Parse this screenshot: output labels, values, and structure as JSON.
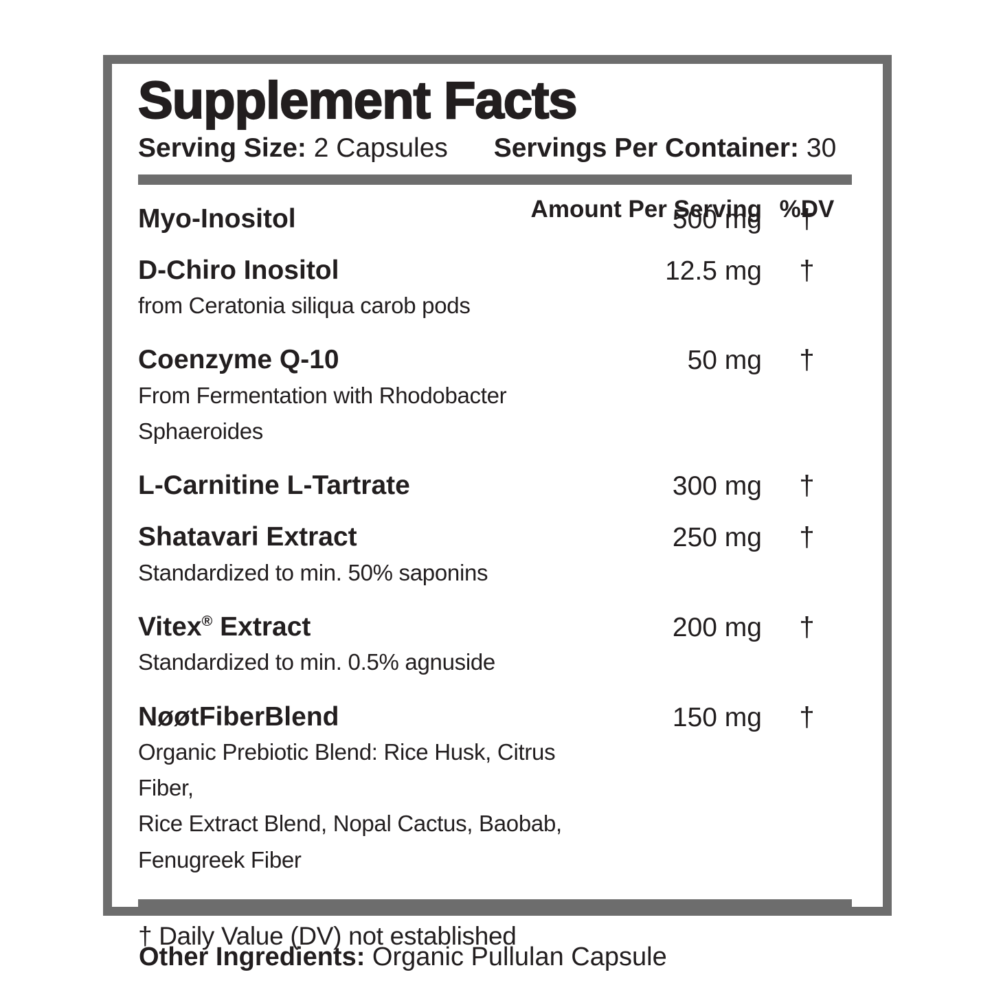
{
  "panel": {
    "title": "Supplement Facts",
    "serving_size_label": "Serving Size:",
    "serving_size_value": "2 Capsules",
    "servings_per_container_label": "Servings Per Container:",
    "servings_per_container_value": "30",
    "columns": {
      "amount": "Amount Per Serving",
      "dv": "%DV"
    },
    "rows": [
      {
        "name": "Myo-Inositol",
        "amount": "500 mg",
        "dv": "†"
      },
      {
        "name": "D-Chiro Inositol",
        "sub": "from Ceratonia siliqua carob pods",
        "amount": "12.5 mg",
        "dv": "†"
      },
      {
        "name": "Coenzyme Q-10",
        "sub": "From Fermentation with Rhodobacter Sphaeroides",
        "amount": "50 mg",
        "dv": "†"
      },
      {
        "name": "L-Carnitine L-Tartrate",
        "amount": "300 mg",
        "dv": "†"
      },
      {
        "name": "Shatavari Extract",
        "sub": "Standardized to min. 50% saponins",
        "amount": "250 mg",
        "dv": "†"
      },
      {
        "name": "Vitex",
        "sup": "®",
        "name2": " Extract",
        "sub": "Standardized to min. 0.5% agnuside",
        "amount": "200 mg",
        "dv": "†"
      },
      {
        "name": "NøøtFiberBlend",
        "sub": "Organic Prebiotic Blend: Rice Husk, Citrus Fiber,\nRice Extract Blend, Nopal Cactus, Baobab,\nFenugreek Fiber",
        "amount": "150 mg",
        "dv": "†"
      }
    ],
    "footnote": "† Daily Value (DV) not established"
  },
  "other_ingredients": {
    "label": "Other Ingredients:",
    "value": " Organic Pullulan Capsule"
  },
  "colors": {
    "frame_gray": "#6d6d6d",
    "text_black": "#221e1f",
    "background": "#ffffff"
  }
}
